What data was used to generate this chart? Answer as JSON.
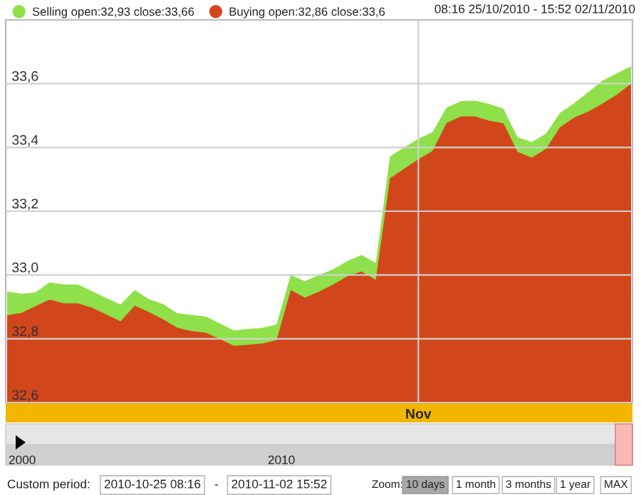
{
  "chart_data": {
    "type": "area",
    "categories": [
      null,
      null,
      null,
      null,
      null,
      null,
      null,
      null,
      null,
      null,
      null,
      null,
      null,
      null,
      null,
      null,
      null,
      null,
      null,
      null,
      null,
      null,
      null,
      null,
      null,
      null,
      null,
      null,
      null,
      "Nov",
      null,
      null,
      null,
      null,
      null,
      null,
      null,
      null,
      null,
      null,
      null,
      null,
      null,
      null,
      null
    ],
    "series": [
      {
        "name": "Selling open:32,93 close:33,66",
        "color": "#8fe04a",
        "values": [
          32.948,
          32.941,
          32.946,
          32.977,
          32.97,
          32.97,
          32.949,
          32.928,
          32.907,
          32.953,
          32.924,
          32.909,
          32.88,
          32.875,
          32.87,
          32.848,
          32.826,
          32.831,
          32.834,
          32.845,
          33.0,
          32.981,
          33.0,
          33.018,
          33.044,
          33.063,
          33.037,
          33.372,
          33.4,
          33.427,
          33.448,
          33.525,
          33.545,
          33.547,
          33.536,
          33.522,
          33.432,
          33.417,
          33.443,
          33.509,
          33.539,
          33.574,
          33.61,
          33.632,
          33.655
        ]
      },
      {
        "name": "Buying open:32,86 close:33,6",
        "color": "#d2461b",
        "values": [
          32.874,
          32.881,
          32.902,
          32.923,
          32.911,
          32.911,
          32.897,
          32.876,
          32.855,
          32.904,
          32.884,
          32.861,
          32.835,
          32.824,
          32.819,
          32.799,
          32.778,
          32.781,
          32.785,
          32.796,
          32.953,
          32.929,
          32.948,
          32.97,
          32.996,
          33.011,
          32.985,
          33.303,
          33.333,
          33.363,
          33.389,
          33.477,
          33.497,
          33.497,
          33.484,
          33.476,
          33.386,
          33.368,
          33.396,
          33.464,
          33.494,
          33.513,
          33.538,
          33.566,
          33.6
        ]
      }
    ],
    "ylim": [
      32.6,
      33.8
    ],
    "yticks": [
      {
        "value": 32.6,
        "label": "32,6"
      },
      {
        "value": 32.8,
        "label": "32,8"
      },
      {
        "value": 33.0,
        "label": "33,0"
      },
      {
        "value": 33.2,
        "label": "33,2"
      },
      {
        "value": 33.4,
        "label": "33,4"
      },
      {
        "value": 33.6,
        "label": "33,6"
      }
    ],
    "grid": true,
    "legend": "top left",
    "annotations": [
      "08:16 25/10/2010 - 15:52 02/11/2010",
      "2000",
      "2010",
      "Custom period:",
      "2010-10-25 08:16",
      "-",
      "2010-11-02 15:52",
      "Zoom:",
      "10 days",
      "1 month",
      "3 months",
      "1 year",
      "MAX"
    ]
  }
}
